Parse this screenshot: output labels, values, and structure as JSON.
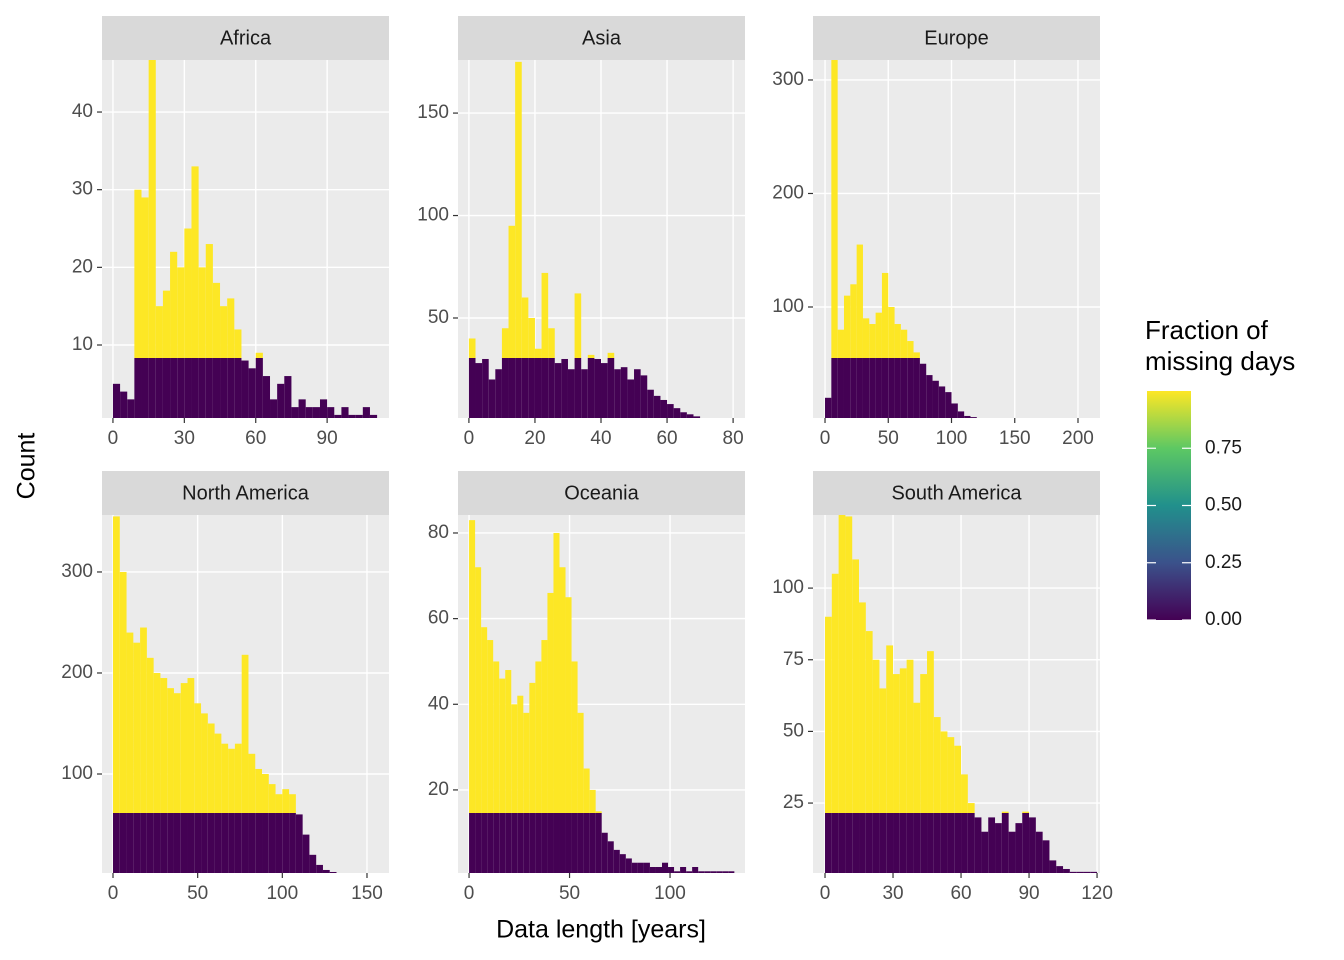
{
  "chart_data": [
    {
      "type": "histogram",
      "title": "Africa",
      "bins": [
        0,
        3,
        6,
        9,
        12,
        15,
        18,
        21,
        24,
        27,
        30,
        33,
        36,
        39,
        42,
        45,
        48,
        51,
        54,
        57,
        60,
        63,
        66,
        69,
        72,
        75,
        78,
        81,
        84,
        87,
        90,
        93,
        96,
        99,
        102,
        105,
        108,
        111
      ],
      "counts": [
        5,
        4,
        3,
        30,
        29,
        47,
        15,
        17,
        22,
        20,
        25,
        33,
        20,
        23,
        18,
        15,
        16,
        12,
        8,
        7,
        9,
        6,
        3,
        5,
        6,
        2,
        3,
        2,
        2,
        3,
        2,
        1,
        2,
        1,
        1,
        2,
        1
      ],
      "xlim": [
        -4.6,
        116
      ],
      "ylim": [
        0.6,
        46.7
      ],
      "xticks": [
        0,
        30,
        60,
        90
      ],
      "yticks": [
        10,
        20,
        30,
        40
      ]
    },
    {
      "type": "histogram",
      "title": "Asia",
      "bins": [
        0,
        2,
        4,
        6,
        8,
        10,
        12,
        14,
        16,
        18,
        20,
        22,
        24,
        26,
        28,
        30,
        32,
        34,
        36,
        38,
        40,
        42,
        44,
        46,
        48,
        50,
        52,
        54,
        56,
        58,
        60,
        62,
        64,
        66,
        68,
        70,
        72,
        74,
        76,
        78,
        80
      ],
      "counts": [
        40,
        28,
        30,
        20,
        25,
        45,
        95,
        175,
        60,
        50,
        35,
        72,
        45,
        28,
        30,
        25,
        62,
        25,
        32,
        30,
        28,
        33,
        25,
        26,
        20,
        25,
        22,
        15,
        12,
        10,
        8,
        6,
        4,
        3,
        2,
        1,
        0,
        1,
        1,
        1
      ],
      "xlim": [
        -3.3,
        83.6
      ],
      "ylim": [
        1.2,
        175.9
      ],
      "xticks": [
        0,
        20,
        40,
        60,
        80
      ],
      "yticks": [
        50,
        100,
        150
      ]
    },
    {
      "type": "histogram",
      "title": "Europe",
      "bins": [
        0,
        5,
        10,
        15,
        20,
        25,
        30,
        35,
        40,
        45,
        50,
        55,
        60,
        65,
        70,
        75,
        80,
        85,
        90,
        95,
        100,
        105,
        110,
        115,
        120,
        125,
        130,
        135,
        140,
        145,
        150,
        155,
        160,
        165,
        170,
        175,
        180,
        185,
        190,
        195,
        200,
        205,
        210
      ],
      "counts": [
        20,
        318,
        80,
        110,
        120,
        155,
        90,
        85,
        95,
        130,
        100,
        85,
        80,
        70,
        60,
        50,
        40,
        35,
        30,
        25,
        15,
        8,
        4,
        3,
        2,
        2,
        1,
        1,
        1,
        1,
        1,
        1,
        1,
        1,
        1,
        1,
        1,
        0,
        1,
        1,
        1,
        1
      ],
      "xlim": [
        -9.5,
        217.4
      ],
      "ylim": [
        2.2,
        317.6
      ],
      "xticks": [
        0,
        50,
        100,
        150,
        200
      ],
      "yticks": [
        100,
        200,
        300
      ]
    },
    {
      "type": "histogram",
      "title": "North America",
      "bins": [
        0,
        4,
        8,
        12,
        16,
        20,
        24,
        28,
        32,
        36,
        40,
        44,
        48,
        52,
        56,
        60,
        64,
        68,
        72,
        76,
        80,
        84,
        88,
        92,
        96,
        100,
        104,
        108,
        112,
        116,
        120,
        124,
        128,
        132,
        136,
        140
      ],
      "counts": [
        355,
        300,
        240,
        230,
        245,
        215,
        200,
        195,
        185,
        180,
        190,
        195,
        170,
        160,
        150,
        140,
        130,
        125,
        130,
        218,
        120,
        105,
        100,
        90,
        80,
        85,
        80,
        60,
        40,
        20,
        10,
        5,
        3,
        2,
        1
      ],
      "xlim": [
        -6.5,
        163
      ],
      "ylim": [
        2,
        356.4
      ],
      "xticks": [
        0,
        50,
        100,
        150
      ],
      "yticks": [
        100,
        200,
        300
      ]
    },
    {
      "type": "histogram",
      "title": "Oceania",
      "bins": [
        0,
        3,
        6,
        9,
        12,
        15,
        18,
        21,
        24,
        27,
        30,
        33,
        36,
        39,
        42,
        45,
        48,
        51,
        54,
        57,
        60,
        63,
        66,
        69,
        72,
        75,
        78,
        81,
        84,
        87,
        90,
        93,
        96,
        99,
        102,
        105,
        108,
        111,
        114,
        117,
        120,
        123,
        126,
        129,
        132
      ],
      "counts": [
        83,
        72,
        58,
        55,
        50,
        46,
        48,
        40,
        42,
        38,
        45,
        50,
        55,
        66,
        80,
        72,
        65,
        50,
        38,
        25,
        20,
        15,
        10,
        8,
        6,
        5,
        4,
        3,
        3,
        3,
        2,
        2,
        3,
        2,
        1,
        2,
        1,
        2,
        1,
        1,
        1,
        1,
        1,
        1
      ],
      "xlim": [
        -5.5,
        137.3
      ],
      "ylim": [
        0.6,
        84.2
      ],
      "xticks": [
        0,
        50,
        100
      ],
      "yticks": [
        20,
        40,
        60,
        80
      ]
    },
    {
      "type": "histogram",
      "title": "South America",
      "bins": [
        0,
        3,
        6,
        9,
        12,
        15,
        18,
        21,
        24,
        27,
        30,
        33,
        36,
        39,
        42,
        45,
        48,
        51,
        54,
        57,
        60,
        63,
        66,
        69,
        72,
        75,
        78,
        81,
        84,
        87,
        90,
        93,
        96,
        99,
        102,
        105,
        108,
        111,
        114,
        117,
        120
      ],
      "counts": [
        90,
        105,
        128,
        125,
        110,
        95,
        85,
        75,
        65,
        80,
        70,
        72,
        75,
        60,
        70,
        78,
        55,
        50,
        48,
        45,
        35,
        25,
        20,
        15,
        20,
        18,
        22,
        15,
        18,
        22,
        20,
        15,
        12,
        5,
        3,
        2,
        1,
        1,
        1,
        1
      ],
      "xlim": [
        -5.3,
        121.3
      ],
      "ylim": [
        0.6,
        125.5
      ],
      "xticks": [
        0,
        30,
        60,
        90,
        120
      ],
      "yticks": [
        25,
        50,
        75,
        100
      ]
    }
  ],
  "x_label": "Data length [years]",
  "y_label": "Count",
  "legend": {
    "title": "Fraction of missing days",
    "colors": [
      "#440154",
      "#3b528b",
      "#21908c",
      "#5dc863",
      "#fde725"
    ],
    "lim": [
      0,
      1
    ],
    "ticks": [
      {
        "value": 0,
        "label": "0.00"
      },
      {
        "value": 0.25,
        "label": "0.25"
      },
      {
        "value": 0.5,
        "label": "0.50"
      },
      {
        "value": 0.75,
        "label": "0.75"
      }
    ]
  }
}
